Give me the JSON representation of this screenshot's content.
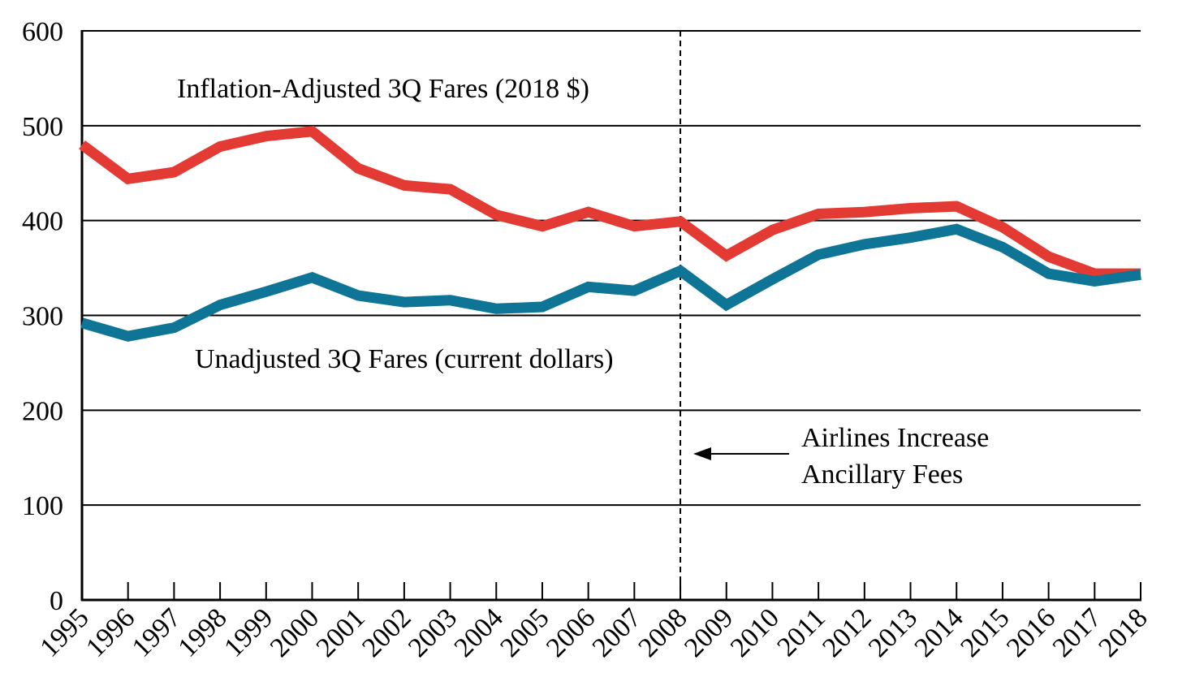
{
  "chart_data": {
    "type": "line",
    "x": [
      "1995",
      "1996",
      "1997",
      "1998",
      "1999",
      "2000",
      "2001",
      "2002",
      "2003",
      "2004",
      "2005",
      "2006",
      "2007",
      "2008",
      "2009",
      "2010",
      "2011",
      "2012",
      "2013",
      "2014",
      "2015",
      "2016",
      "2017",
      "2018"
    ],
    "ylim": [
      0,
      600
    ],
    "yticks": [
      "0",
      "100",
      "200",
      "300",
      "400",
      "500",
      "600"
    ],
    "grid": true,
    "series": [
      {
        "name": "Inflation-Adjusted 3Q Fares (2018 $)",
        "color": "#e33b33",
        "values": [
          480,
          444,
          451,
          478,
          489,
          494,
          455,
          437,
          433,
          406,
          394,
          409,
          394,
          399,
          363,
          390,
          407,
          409,
          413,
          415,
          393,
          362,
          344,
          344
        ]
      },
      {
        "name": "Unadjusted 3Q Fares (current dollars)",
        "color": "#0f7596",
        "values": [
          292,
          278,
          287,
          311,
          325,
          340,
          321,
          314,
          316,
          307,
          309,
          330,
          326,
          347,
          311,
          338,
          364,
          375,
          382,
          391,
          372,
          344,
          336,
          343
        ]
      }
    ],
    "event_marker": {
      "x": "2008",
      "label_lines": [
        "Airlines Increase",
        "Ancillary Fees"
      ]
    }
  }
}
